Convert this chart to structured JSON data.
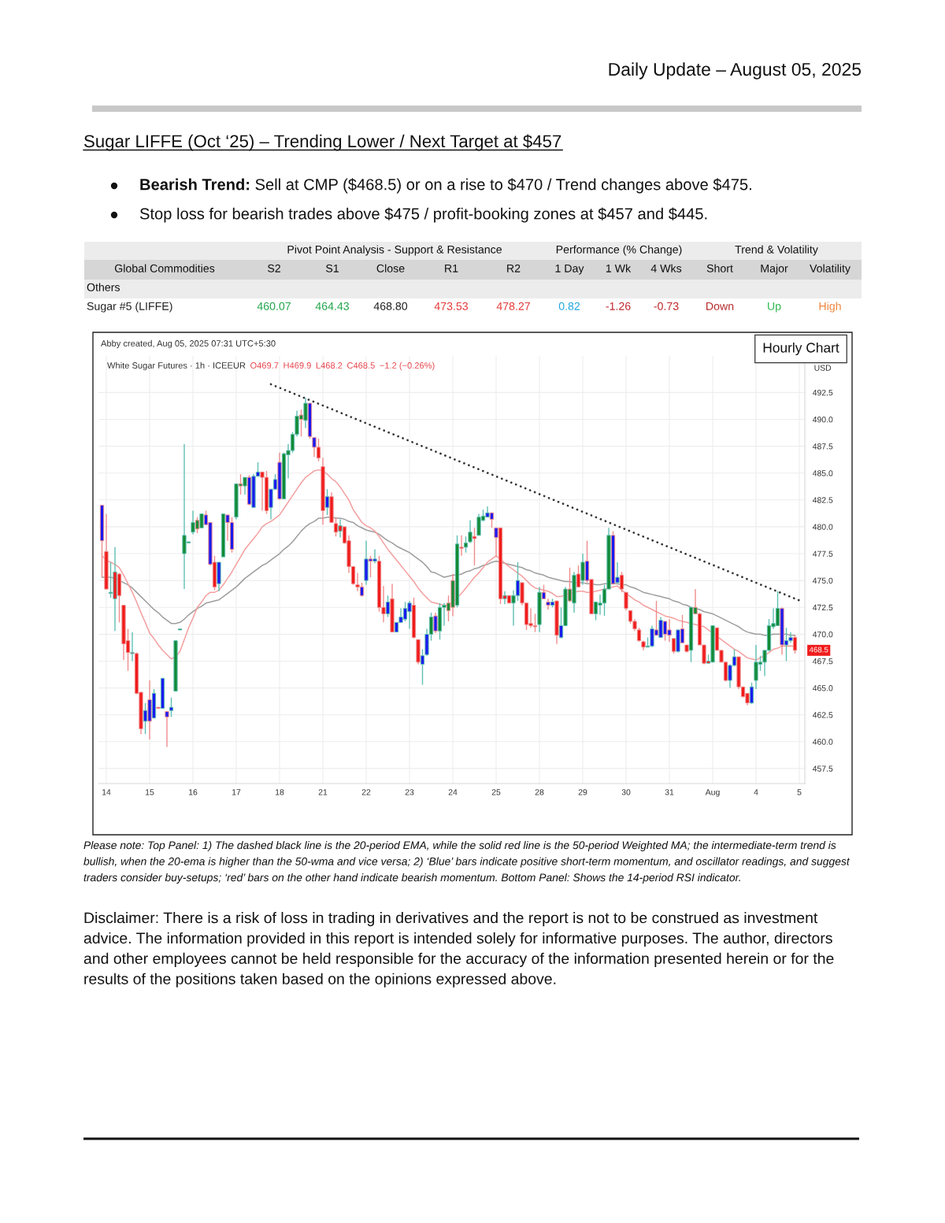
{
  "chart_data": {
    "type": "candlestick",
    "subtitle": "Daily Update – August 05, 2025",
    "title": "Sugar LIFFE (Oct ‘25) – Trending Lower / Next Target at $457",
    "categories": [
      null,
      "14",
      null,
      null,
      null,
      null,
      null,
      null,
      null,
      null,
      null,
      "15",
      null,
      null,
      null,
      null,
      null,
      null,
      null,
      null,
      null,
      "16",
      null,
      null,
      null,
      null,
      null,
      null,
      null,
      null,
      null,
      "17",
      null,
      null,
      null,
      null,
      null,
      null,
      null,
      null,
      null,
      "18",
      null,
      null,
      null,
      null,
      null,
      null,
      null,
      null,
      null,
      "21",
      null,
      null,
      null,
      null,
      null,
      null,
      null,
      null,
      null,
      "22",
      null,
      null,
      null,
      null,
      null,
      null,
      null,
      null,
      null,
      "23",
      null,
      null,
      null,
      null,
      null,
      null,
      null,
      null,
      null,
      "24",
      null,
      null,
      null,
      null,
      null,
      null,
      null,
      null,
      null,
      "25",
      null,
      null,
      null,
      null,
      null,
      null,
      null,
      null,
      null,
      "28",
      null,
      null,
      null,
      null,
      null,
      null,
      null,
      null,
      null,
      "29",
      null,
      null,
      null,
      null,
      null,
      null,
      null,
      null,
      null,
      "30",
      null,
      null,
      null,
      null,
      null,
      null,
      null,
      null,
      null,
      "31",
      null,
      null,
      null,
      null,
      null,
      null,
      null,
      null,
      null,
      "Aug",
      null,
      null,
      null,
      null,
      null,
      null,
      null,
      null,
      null,
      "4",
      null,
      null,
      null,
      null,
      null,
      null,
      null,
      null,
      null,
      "5"
    ],
    "ohlc": [
      [
        482.0,
        482.0,
        475.3,
        478.7
      ],
      [
        477.7,
        481.2,
        474.2,
        474.2
      ],
      [
        473.8,
        476.7,
        473.4,
        473.9
      ],
      [
        473.3,
        478.1,
        470.3,
        475.8
      ],
      [
        475.6,
        475.7,
        471.1,
        473.6
      ],
      [
        472.7,
        472.7,
        467.6,
        469.1
      ],
      [
        469.4,
        470.5,
        466.6,
        468.3
      ],
      [
        468.2,
        470.2,
        467.5,
        468.3
      ],
      [
        468.2,
        468.3,
        464.4,
        464.5
      ],
      [
        464.6,
        464.6,
        460.7,
        461.2
      ],
      [
        461.9,
        463.6,
        460.7,
        462.9
      ],
      [
        463.9,
        465.7,
        460.2,
        461.9
      ],
      [
        462.2,
        464.9,
        462.2,
        464.5
      ],
      [
        463.2,
        463.2,
        463.1,
        463.1
      ],
      [
        463.1,
        465.9,
        463.1,
        465.9
      ],
      [
        462.8,
        462.8,
        459.5,
        462.3
      ],
      [
        462.9,
        464.1,
        462.3,
        463.2
      ],
      [
        464.7,
        469.4,
        464.7,
        469.4
      ],
      [
        470.4,
        470.5,
        470.4,
        470.5
      ],
      [
        477.5,
        487.7,
        474.2,
        479.2
      ],
      [
        478.5,
        478.6,
        478.5,
        478.6
      ],
      [
        479.5,
        481.5,
        479.3,
        480.4
      ],
      [
        480.6,
        480.9,
        479.4,
        479.8
      ],
      [
        479.9,
        481.2,
        479.9,
        481.2
      ],
      [
        481.1,
        481.5,
        480.2,
        480.2
      ],
      [
        480.4,
        480.4,
        476.4,
        476.5
      ],
      [
        476.7,
        477.3,
        474.1,
        474.4
      ],
      [
        474.7,
        476.7,
        474.0,
        476.7
      ],
      [
        477.2,
        481.2,
        477.2,
        481.2
      ],
      [
        481.1,
        481.1,
        478.7,
        480.4
      ],
      [
        480.4,
        480.9,
        477.6,
        477.9
      ],
      [
        480.9,
        484.0,
        480.7,
        484.0
      ],
      [
        484.0,
        484.9,
        483.0,
        483.8
      ],
      [
        483.8,
        484.6,
        483.0,
        484.6
      ],
      [
        484.6,
        484.8,
        482.0,
        482.1
      ],
      [
        481.8,
        484.9,
        481.8,
        484.7
      ],
      [
        484.7,
        486.0,
        484.7,
        485.1
      ],
      [
        485.1,
        485.1,
        481.5,
        484.6
      ],
      [
        484.6,
        485.2,
        481.2,
        481.5
      ],
      [
        481.8,
        483.5,
        480.7,
        483.5
      ],
      [
        483.5,
        484.9,
        483.5,
        484.4
      ],
      [
        486.0,
        486.9,
        482.5,
        482.6
      ],
      [
        482.6,
        486.9,
        482.6,
        486.8
      ],
      [
        486.7,
        487.7,
        484.5,
        487.1
      ],
      [
        487.1,
        488.8,
        486.9,
        488.6
      ],
      [
        488.6,
        490.8,
        488.4,
        490.3
      ],
      [
        490.4,
        490.9,
        488.4,
        490.0
      ],
      [
        489.9,
        492.0,
        489.2,
        491.5
      ],
      [
        491.5,
        491.5,
        488.2,
        488.4
      ],
      [
        488.3,
        488.3,
        486.5,
        487.4
      ],
      [
        487.4,
        488.2,
        486.1,
        486.4
      ],
      [
        485.6,
        486.4,
        480.2,
        481.5
      ],
      [
        481.8,
        483.5,
        481.1,
        482.8
      ],
      [
        482.8,
        483.2,
        480.4,
        480.4
      ],
      [
        480.3,
        480.9,
        479.1,
        479.5
      ],
      [
        479.6,
        480.7,
        479.0,
        480.1
      ],
      [
        480.0,
        480.0,
        478.4,
        478.5
      ],
      [
        478.7,
        479.2,
        475.7,
        476.3
      ],
      [
        476.3,
        476.3,
        474.6,
        474.7
      ],
      [
        474.6,
        475.7,
        474.0,
        474.4
      ],
      [
        474.4,
        474.8,
        473.5,
        473.6
      ],
      [
        475.0,
        478.7,
        474.6,
        477.0
      ],
      [
        477.0,
        477.3,
        475.3,
        476.8
      ],
      [
        476.8,
        477.9,
        476.6,
        477.0
      ],
      [
        476.8,
        477.3,
        472.1,
        472.5
      ],
      [
        472.5,
        474.5,
        471.1,
        471.9
      ],
      [
        471.9,
        473.6,
        471.6,
        473.0
      ],
      [
        473.3,
        474.7,
        470.2,
        470.2
      ],
      [
        470.2,
        471.1,
        470.2,
        471.1
      ],
      [
        471.1,
        472.4,
        471.1,
        471.6
      ],
      [
        471.4,
        473.0,
        471.2,
        472.4
      ],
      [
        472.1,
        473.1,
        470.5,
        472.9
      ],
      [
        472.7,
        473.4,
        469.6,
        469.7
      ],
      [
        469.5,
        469.5,
        467.2,
        467.4
      ],
      [
        467.2,
        468.6,
        465.3,
        468.0
      ],
      [
        468.1,
        470.5,
        468.0,
        470.0
      ],
      [
        470.0,
        472.0,
        469.4,
        471.6
      ],
      [
        471.7,
        472.0,
        470.1,
        470.3
      ],
      [
        470.3,
        472.9,
        469.5,
        472.5
      ],
      [
        472.5,
        472.9,
        470.8,
        472.7
      ],
      [
        472.9,
        473.6,
        471.2,
        472.2
      ],
      [
        475.0,
        475.6,
        471.7,
        472.5
      ],
      [
        472.7,
        479.2,
        472.5,
        478.4
      ],
      [
        478.1,
        479.2,
        477.3,
        478.0
      ],
      [
        478.1,
        479.1,
        477.6,
        478.5
      ],
      [
        478.6,
        480.6,
        478.5,
        479.5
      ],
      [
        479.1,
        479.9,
        476.4,
        478.9
      ],
      [
        479.2,
        481.2,
        479.2,
        480.9
      ],
      [
        480.6,
        481.6,
        480.5,
        481.0
      ],
      [
        480.9,
        481.9,
        480.9,
        481.3
      ],
      [
        481.3,
        481.3,
        479.9,
        480.7
      ],
      [
        479.9,
        479.9,
        477.2,
        479.0
      ],
      [
        479.9,
        479.9,
        472.8,
        473.3
      ],
      [
        473.3,
        474.0,
        472.8,
        473.6
      ],
      [
        473.6,
        473.6,
        472.9,
        472.9
      ],
      [
        472.9,
        474.1,
        470.8,
        473.6
      ],
      [
        473.6,
        476.7,
        473.1,
        475.0
      ],
      [
        474.8,
        474.8,
        472.7,
        472.9
      ],
      [
        472.9,
        472.9,
        470.4,
        470.9
      ],
      [
        471.0,
        472.4,
        470.6,
        470.8
      ],
      [
        470.8,
        471.9,
        470.2,
        470.7
      ],
      [
        470.9,
        474.4,
        470.2,
        473.9
      ],
      [
        473.9,
        474.6,
        473.3,
        473.3
      ],
      [
        473.0,
        473.3,
        472.3,
        472.7
      ],
      [
        472.7,
        473.3,
        472.5,
        473.0
      ],
      [
        473.1,
        473.1,
        469.1,
        469.9
      ],
      [
        469.7,
        472.5,
        469.6,
        470.8
      ],
      [
        470.8,
        474.4,
        470.8,
        474.2
      ],
      [
        474.2,
        476.2,
        473.0,
        473.1
      ],
      [
        472.9,
        475.8,
        472.0,
        475.5
      ],
      [
        475.6,
        476.4,
        474.4,
        474.4
      ],
      [
        475.0,
        477.5,
        474.6,
        476.7
      ],
      [
        476.8,
        478.7,
        474.8,
        475.0
      ],
      [
        475.1,
        475.1,
        471.9,
        471.9
      ],
      [
        471.9,
        473.0,
        471.3,
        473.0
      ],
      [
        472.7,
        473.7,
        471.8,
        472.9
      ],
      [
        472.9,
        474.6,
        471.7,
        474.2
      ],
      [
        474.2,
        479.9,
        474.2,
        479.2
      ],
      [
        479.2,
        479.6,
        474.6,
        474.7
      ],
      [
        474.8,
        476.7,
        474.8,
        475.3
      ],
      [
        475.5,
        475.8,
        473.9,
        474.2
      ],
      [
        473.9,
        473.9,
        472.2,
        472.4
      ],
      [
        472.2,
        472.2,
        471.0,
        471.2
      ],
      [
        471.2,
        471.4,
        470.3,
        470.5
      ],
      [
        470.4,
        470.6,
        469.3,
        469.4
      ],
      [
        469.3,
        469.4,
        468.5,
        468.8
      ],
      [
        468.8,
        469.7,
        468.8,
        468.9
      ],
      [
        468.9,
        470.8,
        468.8,
        470.5
      ],
      [
        470.4,
        473.1,
        469.9,
        469.9
      ],
      [
        469.7,
        471.6,
        469.7,
        471.3
      ],
      [
        471.2,
        471.2,
        469.4,
        470.0
      ],
      [
        470.4,
        471.4,
        469.3,
        469.9
      ],
      [
        469.6,
        469.6,
        468.2,
        468.4
      ],
      [
        468.4,
        470.4,
        468.3,
        470.4
      ],
      [
        470.5,
        471.8,
        469.2,
        469.2
      ],
      [
        469.0,
        469.0,
        468.3,
        468.4
      ],
      [
        468.5,
        472.5,
        467.4,
        472.5
      ],
      [
        472.5,
        474.2,
        471.9,
        471.9
      ],
      [
        471.9,
        472.0,
        469.0,
        469.0
      ],
      [
        469.0,
        469.0,
        467.2,
        467.3
      ],
      [
        467.3,
        468.1,
        467.3,
        467.5
      ],
      [
        467.4,
        470.8,
        467.4,
        470.8
      ],
      [
        470.6,
        470.6,
        468.5,
        468.5
      ],
      [
        468.5,
        468.5,
        467.4,
        467.4
      ],
      [
        467.4,
        467.4,
        465.6,
        465.7
      ],
      [
        465.7,
        467.2,
        465.0,
        467.1
      ],
      [
        467.1,
        468.6,
        467.0,
        467.9
      ],
      [
        467.9,
        467.9,
        464.9,
        465.1
      ],
      [
        465.1,
        465.1,
        464.1,
        464.2
      ],
      [
        464.5,
        464.5,
        463.4,
        463.6
      ],
      [
        463.6,
        465.5,
        463.5,
        465.1
      ],
      [
        465.7,
        469.0,
        464.9,
        467.4
      ],
      [
        467.2,
        468.0,
        466.6,
        467.4
      ],
      [
        467.4,
        468.5,
        466.1,
        468.5
      ],
      [
        468.5,
        471.4,
        468.4,
        470.8
      ],
      [
        470.7,
        472.4,
        470.5,
        471.0
      ],
      [
        470.8,
        474.0,
        470.8,
        472.4
      ],
      [
        472.4,
        472.5,
        468.1,
        469.0
      ],
      [
        469.0,
        470.6,
        467.5,
        469.4
      ],
      [
        469.4,
        470.2,
        469.2,
        469.7
      ],
      [
        469.7,
        469.9,
        468.2,
        468.5
      ],
      null
    ],
    "colors": [
      "#1a1af0",
      "#f01c1c",
      "#138a36",
      "#f01c1c",
      "#f01c1c",
      "#f01c1c",
      "#f01c1c",
      "#f01c1c",
      "#f01c1c",
      "#f01c1c",
      "#1a1af0",
      "#1a1af0",
      "#1a1af0",
      "#f01c1c",
      "#1a1af0",
      "#1a1af0",
      "#1a1af0",
      "#138a36",
      "#138a36",
      "#138a36",
      "#138a36",
      "#138a36",
      "#138a36",
      "#138a36",
      "#1a1af0",
      "#1a1af0",
      "#f01c1c",
      "#1a1af0",
      "#138a36",
      "#1a1af0",
      "#1a1af0",
      "#138a36",
      "#138a36",
      "#138a36",
      "#1a1af0",
      "#1a1af0",
      "#1a1af0",
      "#f01c1c",
      "#f01c1c",
      "#1a1af0",
      "#1a1af0",
      "#1a1af0",
      "#138a36",
      "#138a36",
      "#138a36",
      "#138a36",
      "#138a36",
      "#138a36",
      "#1a1af0",
      "#1a1af0",
      "#f01c1c",
      "#f01c1c",
      "#1a1af0",
      "#f01c1c",
      "#f01c1c",
      "#f01c1c",
      "#f01c1c",
      "#f01c1c",
      "#f01c1c",
      "#f01c1c",
      "#1a1af0",
      "#1a1af0",
      "#1a1af0",
      "#1a1af0",
      "#f01c1c",
      "#f01c1c",
      "#1a1af0",
      "#f01c1c",
      "#1a1af0",
      "#1a1af0",
      "#1a1af0",
      "#1a1af0",
      "#f01c1c",
      "#f01c1c",
      "#1a1af0",
      "#1a1af0",
      "#138a36",
      "#1a1af0",
      "#138a36",
      "#138a36",
      "#138a36",
      "#138a36",
      "#138a36",
      "#f01c1c",
      "#138a36",
      "#138a36",
      "#f01c1c",
      "#138a36",
      "#138a36",
      "#1a1af0",
      "#1a1af0",
      "#1a1af0",
      "#f01c1c",
      "#f01c1c",
      "#f01c1c",
      "#138a36",
      "#1a1af0",
      "#f01c1c",
      "#f01c1c",
      "#f01c1c",
      "#f01c1c",
      "#138a36",
      "#1a1af0",
      "#1a1af0",
      "#1a1af0",
      "#f01c1c",
      "#1a1af0",
      "#138a36",
      "#138a36",
      "#138a36",
      "#f01c1c",
      "#138a36",
      "#1a1af0",
      "#f01c1c",
      "#138a36",
      "#138a36",
      "#138a36",
      "#138a36",
      "#1a1af0",
      "#1a1af0",
      "#f01c1c",
      "#f01c1c",
      "#f01c1c",
      "#f01c1c",
      "#f01c1c",
      "#f01c1c",
      "#138a36",
      "#1a1af0",
      "#1a1af0",
      "#1a1af0",
      "#1a1af0",
      "#1a1af0",
      "#f01c1c",
      "#1a1af0",
      "#1a1af0",
      "#f01c1c",
      "#138a36",
      "#138a36",
      "#f01c1c",
      "#f01c1c",
      "#f01c1c",
      "#138a36",
      "#f01c1c",
      "#f01c1c",
      "#f01c1c",
      "#1a1af0",
      "#1a1af0",
      "#f01c1c",
      "#f01c1c",
      "#f01c1c",
      "#1a1af0",
      "#138a36",
      "#138a36",
      "#138a36",
      "#138a36",
      "#138a36",
      "#138a36",
      "#1a1af0",
      "#1a1af0",
      "#1a1af0",
      "#f01c1c",
      null
    ],
    "series": [
      {
        "type": "line",
        "color": "#9e9e9e",
        "values": [
          475.3,
          475.3,
          475.3,
          475.2,
          475.0,
          474.8,
          474.6,
          474.3,
          473.9,
          473.5,
          473.1,
          472.7,
          472.3,
          472.0,
          471.6,
          471.3,
          471.0,
          471.0,
          471.1,
          471.4,
          471.8,
          472.1,
          472.4,
          472.6,
          472.9,
          473.0,
          473.1,
          473.2,
          473.5,
          473.8,
          474.1,
          474.4,
          474.8,
          475.2,
          475.5,
          475.8,
          476.1,
          476.4,
          476.6,
          476.9,
          477.2,
          477.5,
          477.9,
          478.2,
          478.6,
          479.1,
          479.6,
          480.0,
          480.3,
          480.5,
          480.8,
          480.8,
          480.9,
          480.9,
          480.8,
          480.8,
          480.7,
          480.5,
          480.4,
          480.1,
          479.9,
          479.7,
          479.6,
          479.5,
          479.3,
          479.0,
          478.7,
          478.5,
          478.2,
          478.0,
          477.8,
          477.6,
          477.3,
          477.0,
          476.7,
          476.3,
          475.8,
          475.7,
          475.5,
          475.3,
          475.4,
          475.5,
          475.5,
          475.6,
          475.8,
          475.9,
          476.1,
          476.2,
          476.4,
          476.5,
          476.7,
          476.8,
          476.7,
          476.6,
          476.5,
          476.4,
          476.3,
          476.2,
          476.0,
          475.9,
          475.7,
          475.6,
          475.5,
          475.3,
          475.2,
          475.1,
          475.0,
          474.9,
          474.9,
          474.8,
          474.8,
          474.8,
          474.7,
          474.7,
          474.6,
          474.6,
          474.7,
          474.7,
          474.7,
          474.7,
          474.6,
          474.6,
          474.4,
          474.3,
          474.1,
          473.9,
          473.8,
          473.7,
          473.6,
          473.5,
          473.4,
          473.3,
          473.1,
          473.0,
          472.8,
          472.7,
          472.5,
          472.4,
          472.3,
          472.1,
          472.0,
          471.9,
          471.7,
          471.5,
          471.3,
          471.1,
          470.9,
          470.7,
          470.4,
          470.2,
          470.1,
          470.0,
          470.0,
          469.9,
          469.9,
          470.0,
          470.0,
          470.0,
          470.0,
          469.9,
          469.9,
          null
        ]
      },
      {
        "type": "line",
        "color": "#f4a0a0",
        "values": [
          477.3,
          476.9,
          476.7,
          476.5,
          476.2,
          475.5,
          474.7,
          473.9,
          473.0,
          472.0,
          471.1,
          470.1,
          469.6,
          469.0,
          468.5,
          468.1,
          467.7,
          467.9,
          468.4,
          469.5,
          470.6,
          471.5,
          472.5,
          473.0,
          473.6,
          473.9,
          473.9,
          474.1,
          474.6,
          475.2,
          475.8,
          476.5,
          477.2,
          477.9,
          478.4,
          478.9,
          479.4,
          480.0,
          480.3,
          480.5,
          480.8,
          481.1,
          481.7,
          482.3,
          482.9,
          483.5,
          484.1,
          484.6,
          484.9,
          485.2,
          485.3,
          485.2,
          484.9,
          484.5,
          484.2,
          483.7,
          483.1,
          482.5,
          481.6,
          481.0,
          480.4,
          480.1,
          479.9,
          479.6,
          479.1,
          478.5,
          477.9,
          477.4,
          476.9,
          476.4,
          475.9,
          475.4,
          474.9,
          474.3,
          473.8,
          473.4,
          473.0,
          472.9,
          472.8,
          472.7,
          472.7,
          473.0,
          473.4,
          473.8,
          474.3,
          474.8,
          475.3,
          475.7,
          476.2,
          476.7,
          477.0,
          477.3,
          477.0,
          476.6,
          476.3,
          476.0,
          475.7,
          475.4,
          475.0,
          474.6,
          474.3,
          474.2,
          474.1,
          474.0,
          473.8,
          473.5,
          473.5,
          473.7,
          473.8,
          473.9,
          474.0,
          474.0,
          473.9,
          473.9,
          474.0,
          474.1,
          474.2,
          474.3,
          474.4,
          474.5,
          474.1,
          473.8,
          473.5,
          473.2,
          473.0,
          472.7,
          472.5,
          472.3,
          472.1,
          471.9,
          471.7,
          471.6,
          471.5,
          471.3,
          471.2,
          471.1,
          471.0,
          470.9,
          470.8,
          470.7,
          470.4,
          470.1,
          469.8,
          469.5,
          469.2,
          468.9,
          468.6,
          468.4,
          468.1,
          467.8,
          467.7,
          467.6,
          467.8,
          468.0,
          468.3,
          468.6,
          468.7,
          468.9,
          468.9,
          468.9,
          468.9,
          null
        ]
      },
      {
        "type": "line",
        "color": "#333333",
        "line_style": "dotted",
        "values": [
          null,
          null,
          null,
          null,
          null,
          null,
          null,
          null,
          null,
          null,
          null,
          null,
          null,
          null,
          null,
          null,
          null,
          null,
          null,
          null,
          null,
          null,
          null,
          null,
          null,
          null,
          null,
          null,
          null,
          null,
          null,
          null,
          null,
          null,
          null,
          null,
          null,
          null,
          null,
          493.27,
          493.1,
          492.94,
          492.77,
          492.61,
          492.44,
          492.28,
          492.11,
          491.95,
          491.78,
          491.62,
          491.45,
          491.29,
          491.12,
          490.96,
          490.79,
          490.63,
          490.46,
          490.3,
          490.13,
          489.97,
          489.8,
          489.64,
          489.47,
          489.31,
          489.14,
          488.98,
          488.81,
          488.65,
          488.48,
          488.32,
          488.15,
          487.99,
          487.82,
          487.66,
          487.49,
          487.33,
          487.16,
          487.0,
          486.84,
          486.67,
          486.51,
          486.34,
          486.18,
          486.01,
          485.85,
          485.68,
          485.52,
          485.35,
          485.19,
          485.02,
          484.86,
          484.69,
          484.53,
          484.36,
          484.2,
          484.03,
          483.87,
          483.7,
          483.54,
          483.37,
          483.21,
          483.04,
          482.88,
          482.71,
          482.55,
          482.38,
          482.22,
          482.05,
          481.89,
          481.72,
          481.56,
          481.39,
          481.23,
          481.06,
          480.9,
          480.73,
          480.57,
          480.4,
          480.24,
          480.07,
          479.91,
          479.74,
          479.58,
          479.41,
          479.25,
          479.08,
          478.92,
          478.75,
          478.59,
          478.42,
          478.26,
          478.1,
          477.93,
          477.77,
          477.6,
          477.44,
          477.27,
          477.11,
          476.94,
          476.78,
          476.61,
          476.45,
          476.28,
          476.12,
          475.95,
          475.79,
          475.62,
          475.46,
          475.29,
          475.13,
          474.96,
          474.8,
          474.63,
          474.47,
          474.3,
          474.14,
          473.97,
          473.81,
          473.64,
          473.48,
          473.31,
          473.15
        ]
      }
    ],
    "ylim": [
      456.1,
      495.9
    ],
    "yticks": [
      457.5,
      {
        "value": 460,
        "label": "460.0"
      },
      462.5,
      {
        "value": 465,
        "label": "465.0"
      },
      467.5,
      {
        "value": 470,
        "label": "470.0"
      },
      472.5,
      {
        "value": 475,
        "label": "475.0"
      },
      477.5,
      {
        "value": 480,
        "label": "480.0"
      },
      482.5,
      {
        "value": 485,
        "label": "485.0"
      },
      487.5,
      {
        "value": 490,
        "label": "490.0"
      },
      492.5
    ],
    "ylabel": "USD",
    "grid": true,
    "annotations": [
      "Bearish Trend:",
      "Sell at CMP ($468.5) or on a rise to $470 / Trend changes above $475.",
      "Stop loss for bearish trades above $475 / profit-booking zones at $457 and $445.",
      "Pivot Point Analysis - Support & Resistance",
      "Performance (% Change)",
      "Trend & Volatility",
      "Global Commodities",
      "S2",
      "S1",
      "Close",
      "R1",
      "R2",
      "1 Day",
      "1 Wk",
      "4 Wks",
      "Short",
      "Major",
      "Volatility",
      "Others",
      "Sugar #5 (LIFFE)",
      "460.07",
      "464.43",
      "468.80",
      "473.53",
      "478.27",
      "0.82",
      "-1.26",
      "-0.73",
      "Down",
      "Up",
      "High",
      "Abby created, Aug 05, 2025 07:31 UTC+5:30",
      "White Sugar Futures · 1h · ICEEUR",
      "O469.7",
      "H469.9",
      "L468.2",
      "C468.5",
      "−1.2 (−0.26%)",
      "Hourly Chart",
      "468.5",
      "Please note: Top Panel: 1) The dashed black line is the 20-period EMA, while the solid red line is the 50-period Weighted MA; the intermediate-term trend is bullish, when the 20-ema is higher than the 50-wma and vice versa; 2) ‘Blue’ bars indicate positive short-term momentum, and oscillator readings, and suggest traders consider buy-setups; ‘red’ bars on the other hand indicate bearish momentum. Bottom Panel: Shows the 14-period RSI indicator.",
      "Disclaimer: There is a risk of loss in trading in derivatives and the report is not to be construed as investment advice. The information provided in this report is intended solely for informative purposes. The author, directors and other employees cannot be held responsible for the accuracy of the information presented herein or for the results of the positions taken based on the opinions expressed above."
    ]
  }
}
